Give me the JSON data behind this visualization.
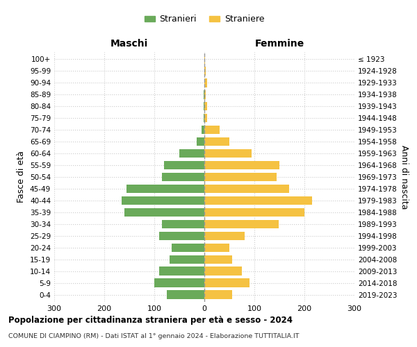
{
  "age_groups": [
    "0-4",
    "5-9",
    "10-14",
    "15-19",
    "20-24",
    "25-29",
    "30-34",
    "35-39",
    "40-44",
    "45-49",
    "50-54",
    "55-59",
    "60-64",
    "65-69",
    "70-74",
    "75-79",
    "80-84",
    "85-89",
    "90-94",
    "95-99",
    "100+"
  ],
  "birth_years": [
    "2019-2023",
    "2014-2018",
    "2009-2013",
    "2004-2008",
    "1999-2003",
    "1994-1998",
    "1989-1993",
    "1984-1988",
    "1979-1983",
    "1974-1978",
    "1969-1973",
    "1964-1968",
    "1959-1963",
    "1954-1958",
    "1949-1953",
    "1944-1948",
    "1939-1943",
    "1934-1938",
    "1929-1933",
    "1924-1928",
    "≤ 1923"
  ],
  "males": [
    75,
    100,
    90,
    70,
    65,
    90,
    85,
    160,
    165,
    155,
    85,
    80,
    50,
    15,
    5,
    2,
    2,
    1,
    0,
    0,
    0
  ],
  "females": [
    55,
    90,
    75,
    55,
    50,
    80,
    148,
    200,
    215,
    170,
    145,
    150,
    95,
    50,
    30,
    5,
    5,
    3,
    5,
    3,
    2
  ],
  "male_color": "#6aaa5a",
  "female_color": "#f5c242",
  "center_line_color": "#999999",
  "grid_color": "#cccccc",
  "background_color": "#ffffff",
  "title": "Popolazione per cittadinanza straniera per età e sesso - 2024",
  "subtitle": "COMUNE DI CIAMPINO (RM) - Dati ISTAT al 1° gennaio 2024 - Elaborazione TUTTITALIA.IT",
  "xlabel_left": "Maschi",
  "xlabel_right": "Femmine",
  "ylabel_left": "Fasce di età",
  "ylabel_right": "Anni di nascita",
  "legend_male": "Stranieri",
  "legend_female": "Straniere",
  "xlim": 300,
  "bar_height": 0.75
}
